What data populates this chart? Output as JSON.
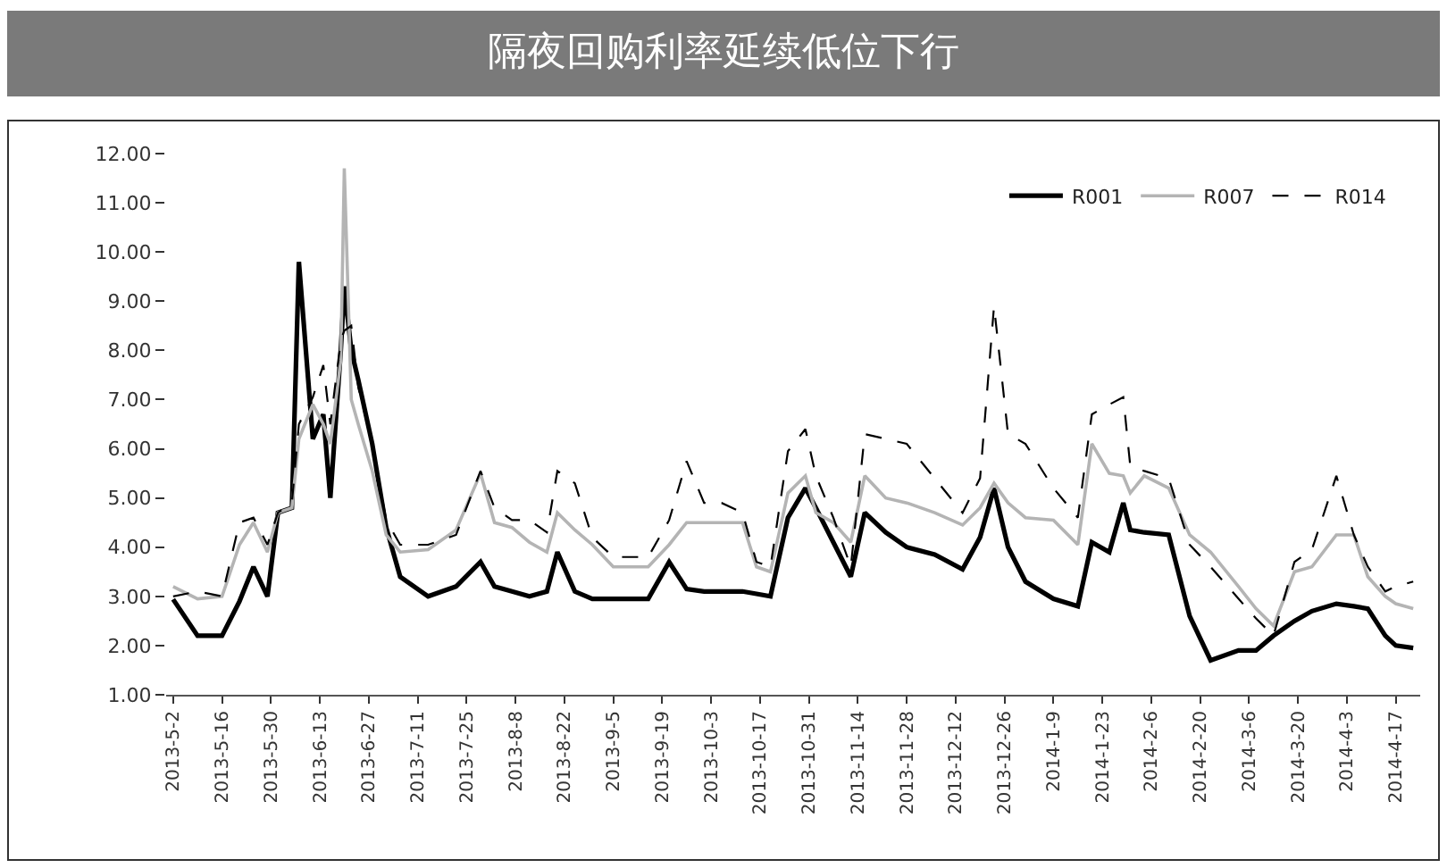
{
  "chart_data": {
    "type": "line",
    "title": "隔夜回购利率延续低位下行",
    "x": [
      "2013-05-02",
      "2013-05-09",
      "2013-05-16",
      "2013-05-21",
      "2013-05-25",
      "2013-05-29",
      "2013-06-01",
      "2013-06-05",
      "2013-06-07",
      "2013-06-11",
      "2013-06-14",
      "2013-06-16",
      "2013-06-19",
      "2013-06-20",
      "2013-06-22",
      "2013-06-24",
      "2013-06-28",
      "2013-07-02",
      "2013-07-06",
      "2013-07-14",
      "2013-07-22",
      "2013-07-29",
      "2013-08-02",
      "2013-08-07",
      "2013-08-12",
      "2013-08-17",
      "2013-08-20",
      "2013-08-25",
      "2013-08-30",
      "2013-09-05",
      "2013-09-15",
      "2013-09-21",
      "2013-09-26",
      "2013-10-01",
      "2013-10-06",
      "2013-10-12",
      "2013-10-16",
      "2013-10-20",
      "2013-10-25",
      "2013-10-30",
      "2013-11-02",
      "2013-11-07",
      "2013-11-12",
      "2013-11-16",
      "2013-11-22",
      "2013-11-28",
      "2013-12-06",
      "2013-12-14",
      "2013-12-19",
      "2013-12-23",
      "2013-12-27",
      "2014-01-01",
      "2014-01-09",
      "2014-01-16",
      "2014-01-20",
      "2014-01-25",
      "2014-01-29",
      "2014-01-31",
      "2014-02-04",
      "2014-02-11",
      "2014-02-17",
      "2014-02-23",
      "2014-03-03",
      "2014-03-08",
      "2014-03-13",
      "2014-03-19",
      "2014-03-24",
      "2014-03-31",
      "2014-04-05",
      "2014-04-09",
      "2014-04-14",
      "2014-04-17",
      "2014-04-22"
    ],
    "series": [
      {
        "name": "R001",
        "color": "#000000",
        "values": [
          2.94,
          2.2,
          2.2,
          2.9,
          3.6,
          3.0,
          4.7,
          4.8,
          9.8,
          6.2,
          6.7,
          5.0,
          8.0,
          9.3,
          8.0,
          7.4,
          6.1,
          4.4,
          3.4,
          3.0,
          3.2,
          3.7,
          3.2,
          3.1,
          3.0,
          3.1,
          3.9,
          3.1,
          2.95,
          2.95,
          2.95,
          3.7,
          3.15,
          3.1,
          3.1,
          3.1,
          3.05,
          3.0,
          4.6,
          5.2,
          4.8,
          4.1,
          3.4,
          4.7,
          4.3,
          4.0,
          3.85,
          3.55,
          4.2,
          5.2,
          4.0,
          3.3,
          2.95,
          2.8,
          4.1,
          3.9,
          4.9,
          4.35,
          4.3,
          4.25,
          2.6,
          1.7,
          1.9,
          1.9,
          2.2,
          2.5,
          2.7,
          2.85,
          2.8,
          2.75,
          2.2,
          2.0,
          1.95
        ]
      },
      {
        "name": "R007",
        "color": "#b4b4b4",
        "values": [
          3.2,
          2.95,
          3.0,
          4.05,
          4.5,
          3.9,
          4.7,
          4.8,
          6.2,
          6.9,
          6.5,
          6.1,
          7.8,
          11.7,
          7.0,
          6.5,
          5.55,
          4.25,
          3.9,
          3.95,
          4.35,
          5.5,
          4.5,
          4.4,
          4.1,
          3.9,
          4.7,
          4.35,
          4.05,
          3.6,
          3.6,
          4.05,
          4.5,
          4.5,
          4.5,
          4.5,
          3.6,
          3.5,
          5.1,
          5.45,
          4.7,
          4.5,
          4.1,
          5.45,
          5.0,
          4.9,
          4.7,
          4.45,
          4.8,
          5.3,
          4.9,
          4.6,
          4.55,
          4.05,
          6.1,
          5.5,
          5.45,
          5.1,
          5.45,
          5.2,
          4.25,
          3.9,
          3.2,
          2.75,
          2.4,
          3.5,
          3.6,
          4.25,
          4.25,
          3.4,
          3.0,
          2.85,
          2.75
        ]
      },
      {
        "name": "R014",
        "color": "#000000",
        "line_style": "dashed",
        "values": [
          3.0,
          3.1,
          3.0,
          4.5,
          4.6,
          4.05,
          4.7,
          4.9,
          6.5,
          7.05,
          7.7,
          6.5,
          8.2,
          8.4,
          8.5,
          7.25,
          6.1,
          4.55,
          4.05,
          4.05,
          4.25,
          5.55,
          4.8,
          4.55,
          4.55,
          4.3,
          5.55,
          5.3,
          4.2,
          3.8,
          3.8,
          4.55,
          5.75,
          4.9,
          4.9,
          4.7,
          3.7,
          3.6,
          5.95,
          6.4,
          5.45,
          4.6,
          3.6,
          6.3,
          6.2,
          6.1,
          5.4,
          4.7,
          5.4,
          8.9,
          6.3,
          6.1,
          5.2,
          4.6,
          6.7,
          6.9,
          7.05,
          5.65,
          5.55,
          5.4,
          4.05,
          3.6,
          2.95,
          2.55,
          2.2,
          3.7,
          3.95,
          5.45,
          4.25,
          3.6,
          3.1,
          3.2,
          3.3
        ]
      }
    ],
    "xlim": [
      "2013-04-30",
      "2014-04-24"
    ],
    "xticks": [
      {
        "value": "2013-05-02",
        "label": "2013-5-2"
      },
      {
        "value": "2013-05-16",
        "label": "2013-5-16"
      },
      {
        "value": "2013-05-30",
        "label": "2013-5-30"
      },
      {
        "value": "2013-06-13",
        "label": "2013-6-13"
      },
      {
        "value": "2013-06-27",
        "label": "2013-6-27"
      },
      {
        "value": "2013-07-11",
        "label": "2013-7-11"
      },
      {
        "value": "2013-07-25",
        "label": "2013-7-25"
      },
      {
        "value": "2013-08-08",
        "label": "2013-8-8"
      },
      {
        "value": "2013-08-22",
        "label": "2013-8-22"
      },
      {
        "value": "2013-09-05",
        "label": "2013-9-5"
      },
      {
        "value": "2013-09-19",
        "label": "2013-9-19"
      },
      {
        "value": "2013-10-03",
        "label": "2013-10-3"
      },
      {
        "value": "2013-10-17",
        "label": "2013-10-17"
      },
      {
        "value": "2013-10-31",
        "label": "2013-10-31"
      },
      {
        "value": "2013-11-14",
        "label": "2013-11-14"
      },
      {
        "value": "2013-11-28",
        "label": "2013-11-28"
      },
      {
        "value": "2013-12-12",
        "label": "2013-12-12"
      },
      {
        "value": "2013-12-26",
        "label": "2013-12-26"
      },
      {
        "value": "2014-01-09",
        "label": "2014-1-9"
      },
      {
        "value": "2014-01-23",
        "label": "2014-1-23"
      },
      {
        "value": "2014-02-06",
        "label": "2014-2-6"
      },
      {
        "value": "2014-02-20",
        "label": "2014-2-20"
      },
      {
        "value": "2014-03-06",
        "label": "2014-3-6"
      },
      {
        "value": "2014-03-20",
        "label": "2014-3-20"
      },
      {
        "value": "2014-04-03",
        "label": "2014-4-3"
      },
      {
        "value": "2014-04-17",
        "label": "2014-4-17"
      }
    ],
    "ylim": [
      1,
      12
    ],
    "yticks": [
      {
        "value": 1,
        "label": "1.00"
      },
      {
        "value": 2,
        "label": "2.00"
      },
      {
        "value": 3,
        "label": "3.00"
      },
      {
        "value": 4,
        "label": "4.00"
      },
      {
        "value": 5,
        "label": "5.00"
      },
      {
        "value": 6,
        "label": "6.00"
      },
      {
        "value": 7,
        "label": "7.00"
      },
      {
        "value": 8,
        "label": "8.00"
      },
      {
        "value": 9,
        "label": "9.00"
      },
      {
        "value": 10,
        "label": "10.00"
      },
      {
        "value": 11,
        "label": "11.00"
      },
      {
        "value": 12,
        "label": "12.00"
      }
    ],
    "grid": false,
    "legend": "top right",
    "marker": "none"
  }
}
